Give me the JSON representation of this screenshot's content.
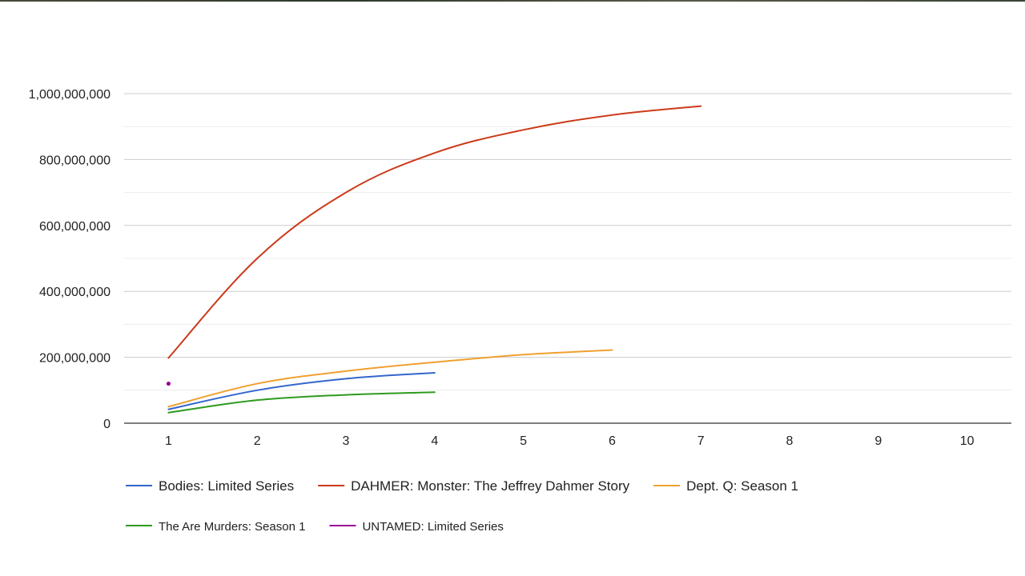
{
  "chart_data": {
    "type": "line",
    "title": "",
    "xlabel": "",
    "ylabel": "",
    "x": [
      1,
      2,
      3,
      4,
      5,
      6,
      7,
      8,
      9,
      10
    ],
    "xlim": [
      0.5,
      10.5
    ],
    "ylim": [
      0,
      1000000000
    ],
    "y_ticks": [
      0,
      200000000,
      400000000,
      600000000,
      800000000,
      1000000000
    ],
    "y_tick_labels": [
      "0",
      "200,000,000",
      "400,000,000",
      "600,000,000",
      "800,000,000",
      "1,000,000,000"
    ],
    "x_tick_labels": [
      "1",
      "2",
      "3",
      "4",
      "5",
      "6",
      "7",
      "8",
      "9",
      "10"
    ],
    "grid": true,
    "minor_grid": true,
    "legend_position": "bottom",
    "series": [
      {
        "name": "Bodies: Limited Series",
        "color": "#3366cc",
        "x": [
          1,
          2,
          3,
          4
        ],
        "values": [
          42000000,
          100000000,
          135000000,
          153000000
        ]
      },
      {
        "name": "DAHMER: Monster: The Jeffrey Dahmer Story",
        "color": "#cc3a1a",
        "x": [
          1,
          2,
          3,
          4,
          5,
          6,
          7
        ],
        "values": [
          198000000,
          500000000,
          700000000,
          820000000,
          890000000,
          935000000,
          962000000
        ]
      },
      {
        "name": "Dept. Q: Season 1",
        "color": "#f0a030",
        "x": [
          1,
          2,
          3,
          4,
          5,
          6
        ],
        "values": [
          50000000,
          120000000,
          158000000,
          185000000,
          208000000,
          222000000
        ]
      },
      {
        "name": "The Are Murders: Season 1",
        "color": "#2e9a1e",
        "x": [
          1,
          2,
          3,
          4
        ],
        "values": [
          32000000,
          70000000,
          86000000,
          94000000
        ]
      },
      {
        "name": "UNTAMED: Limited Series",
        "color": "#990099",
        "x": [
          1
        ],
        "values": [
          120000000
        ]
      }
    ]
  }
}
